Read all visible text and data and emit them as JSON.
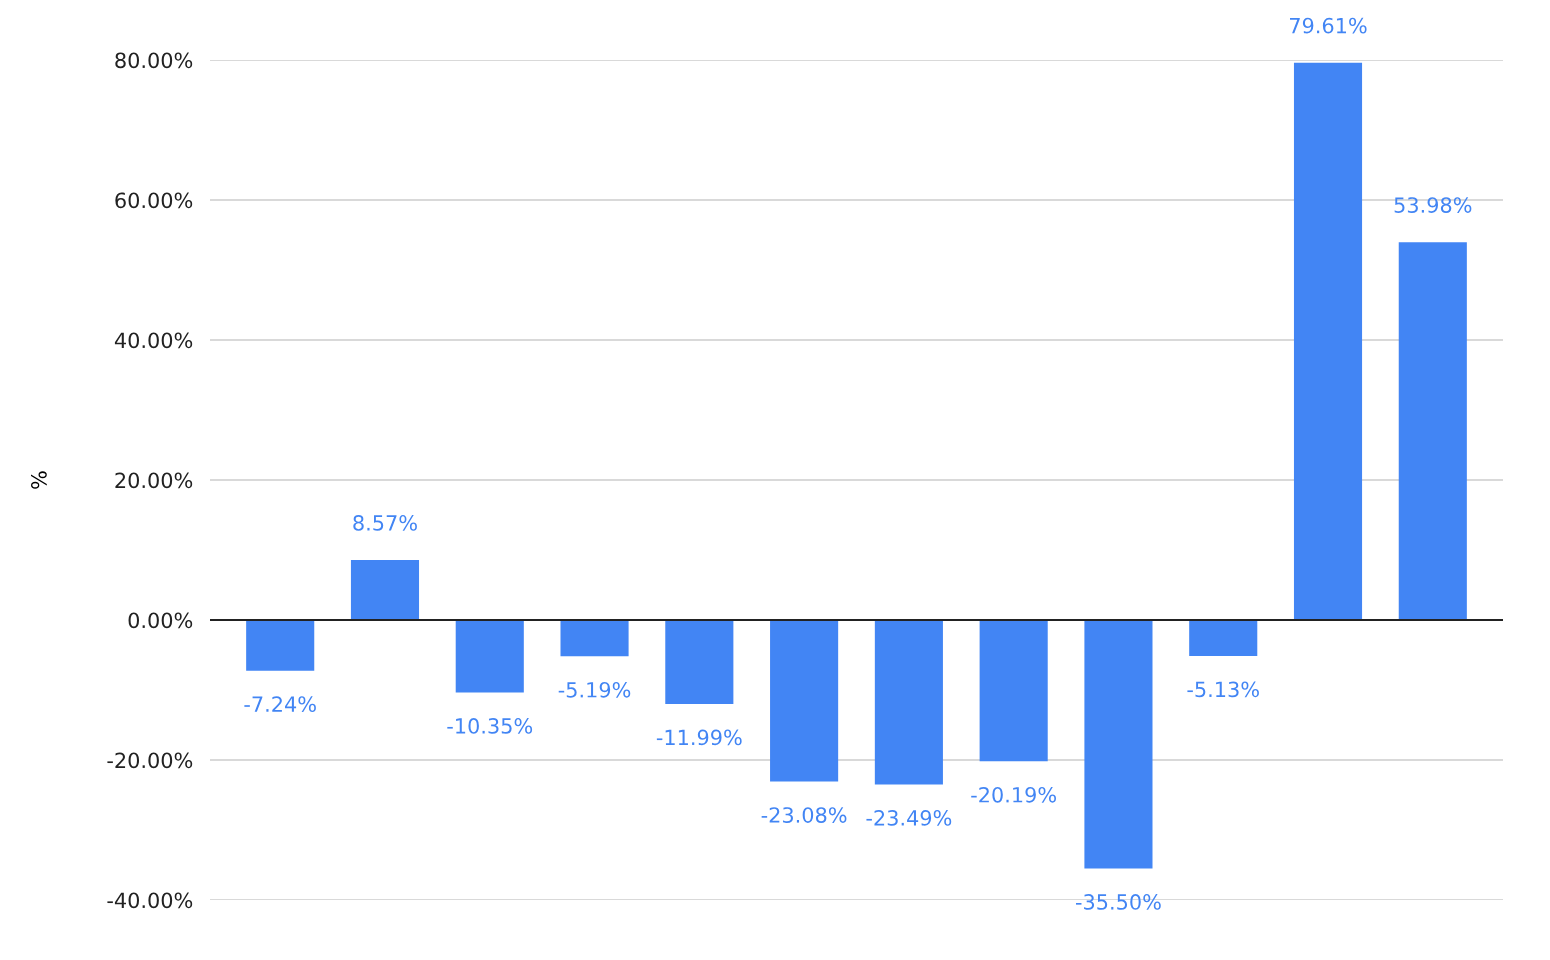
{
  "chart_data": {
    "type": "bar",
    "ylabel": "%",
    "categories": [
      null,
      null,
      null,
      null,
      null,
      null,
      null,
      null,
      null,
      null,
      null,
      null
    ],
    "series": [
      {
        "color": "#4285f4",
        "values": [
          -7.24,
          8.57,
          -10.35,
          -5.19,
          -11.99,
          -23.08,
          -23.49,
          -20.19,
          -35.5,
          -5.13,
          79.61,
          53.98
        ],
        "value_labels": [
          "-7.24%",
          "8.57%",
          "-10.35%",
          "-5.19%",
          "-11.99%",
          "-23.08%",
          "-23.49%",
          "-20.19%",
          "-35.50%",
          "-5.13%",
          "79.61%",
          "53.98%"
        ]
      }
    ],
    "ylim": [
      -40,
      80
    ],
    "yticks": [
      {
        "value": -40,
        "label": "-40.00%"
      },
      {
        "value": -20,
        "label": "-20.00%"
      },
      {
        "value": 0,
        "label": "0.00%"
      },
      {
        "value": 20,
        "label": "20.00%"
      },
      {
        "value": 40,
        "label": "40.00%"
      },
      {
        "value": 60,
        "label": "60.00%"
      },
      {
        "value": 80,
        "label": "80.00%"
      }
    ],
    "grid": "y"
  }
}
